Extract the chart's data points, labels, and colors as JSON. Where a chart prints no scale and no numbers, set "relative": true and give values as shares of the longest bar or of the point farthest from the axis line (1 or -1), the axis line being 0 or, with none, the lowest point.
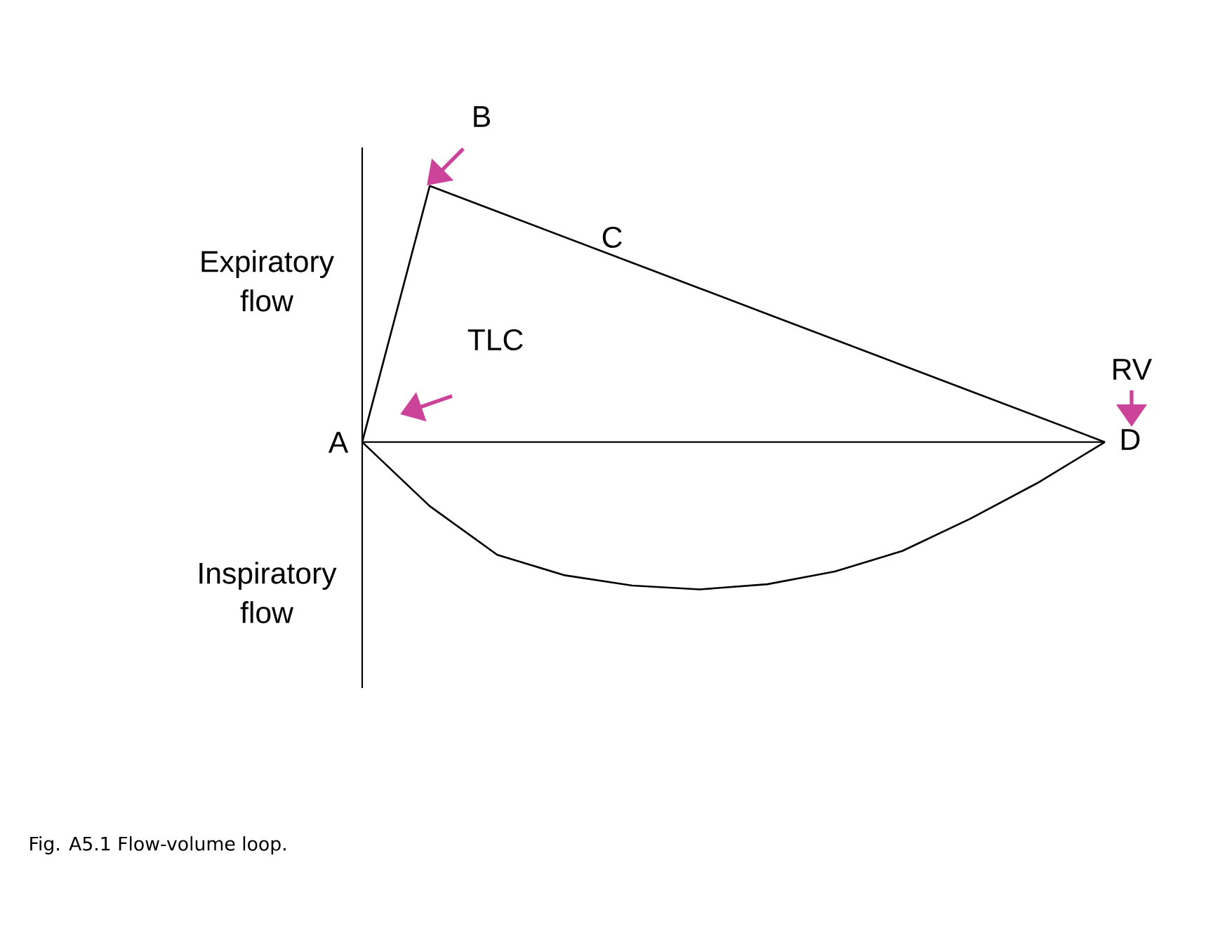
{
  "chart_data": {
    "type": "line",
    "relative": true,
    "categories": [
      null,
      null,
      null,
      null,
      null,
      null,
      null,
      null,
      null,
      null,
      null,
      null
    ],
    "series": [
      {
        "color": "#000000",
        "values": [
          0,
          1,
          0.9,
          0.8,
          0.7,
          0.6,
          0.5,
          0.4,
          0.3,
          0.2,
          0.1,
          0
        ]
      },
      {
        "color": "#000000",
        "values": [
          0,
          -0.25,
          -0.44,
          -0.52,
          -0.56,
          -0.575,
          -0.555,
          -0.505,
          -0.425,
          -0.3,
          -0.16,
          0
        ]
      }
    ],
    "annotations": [
      "Expiratory flow",
      "Inspiratory flow",
      "A",
      "B",
      "C",
      "D",
      "TLC",
      "RV",
      "Fig. A5.1 Flow-volume loop."
    ]
  }
}
